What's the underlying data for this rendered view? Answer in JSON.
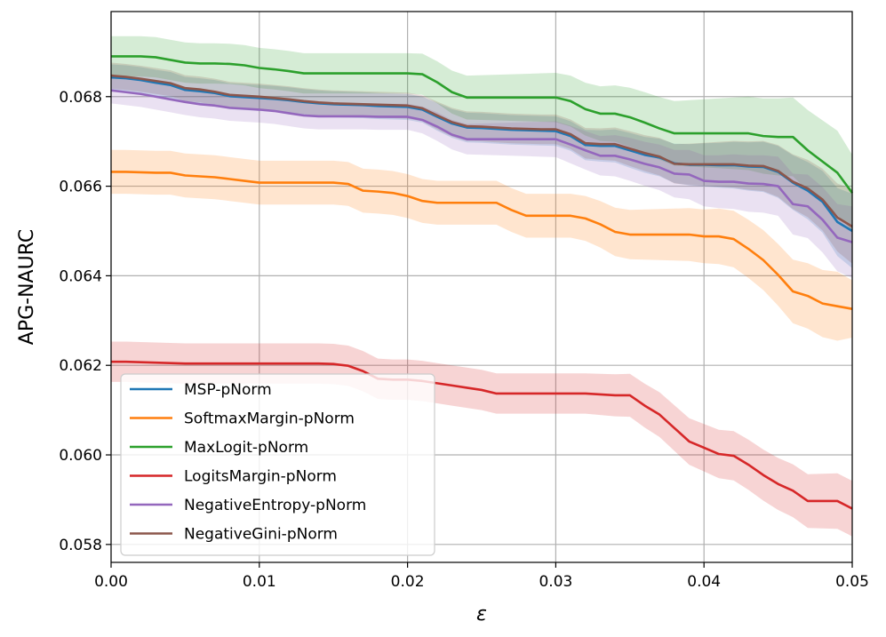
{
  "chart_data": {
    "type": "line",
    "title": "",
    "xlabel": "ε",
    "ylabel": "APG-NAURC",
    "xlim": [
      0.0,
      0.05
    ],
    "ylim": [
      0.0576,
      0.0699
    ],
    "xticks": [
      0.0,
      0.01,
      0.02,
      0.03,
      0.04,
      0.05
    ],
    "xtick_labels": [
      "0.00",
      "0.01",
      "0.02",
      "0.03",
      "0.04",
      "0.05"
    ],
    "yticks": [
      0.058,
      0.06,
      0.062,
      0.064,
      0.066,
      0.068
    ],
    "ytick_labels": [
      "0.058",
      "0.060",
      "0.062",
      "0.064",
      "0.066",
      "0.068"
    ],
    "grid": true,
    "legend_position": "lower-left",
    "x": [
      0.0,
      0.001,
      0.002,
      0.003,
      0.004,
      0.005,
      0.006,
      0.007,
      0.008,
      0.009,
      0.01,
      0.011,
      0.012,
      0.013,
      0.014,
      0.015,
      0.016,
      0.017,
      0.018,
      0.019,
      0.02,
      0.021,
      0.022,
      0.023,
      0.024,
      0.025,
      0.026,
      0.027,
      0.028,
      0.029,
      0.03,
      0.031,
      0.032,
      0.033,
      0.034,
      0.035,
      0.036,
      0.037,
      0.038,
      0.039,
      0.04,
      0.041,
      0.042,
      0.043,
      0.044,
      0.045,
      0.046,
      0.047,
      0.048,
      0.049,
      0.05
    ],
    "series": [
      {
        "name": "MSP-pNorm",
        "color": "#1f77b4",
        "values": [
          0.06843,
          0.06841,
          0.06837,
          0.06831,
          0.06826,
          0.06815,
          0.06812,
          0.06808,
          0.06801,
          0.06799,
          0.06797,
          0.06795,
          0.06792,
          0.06788,
          0.06785,
          0.06783,
          0.06782,
          0.06781,
          0.06779,
          0.06778,
          0.06777,
          0.06771,
          0.06755,
          0.0674,
          0.06731,
          0.0673,
          0.06728,
          0.06726,
          0.06725,
          0.06724,
          0.06723,
          0.06712,
          0.06692,
          0.0669,
          0.0669,
          0.0668,
          0.0667,
          0.06664,
          0.06651,
          0.06648,
          0.06648,
          0.06647,
          0.06647,
          0.06644,
          0.06643,
          0.06632,
          0.06608,
          0.0659,
          0.06565,
          0.0652,
          0.065
        ],
        "lower": [
          0.06814,
          0.06812,
          0.06808,
          0.06802,
          0.06797,
          0.06786,
          0.06783,
          0.06779,
          0.06772,
          0.0677,
          0.06768,
          0.06766,
          0.06763,
          0.06759,
          0.06756,
          0.06754,
          0.06753,
          0.06752,
          0.0675,
          0.06749,
          0.06748,
          0.06742,
          0.06724,
          0.06708,
          0.06698,
          0.06697,
          0.06695,
          0.06693,
          0.06692,
          0.06691,
          0.0669,
          0.06679,
          0.06658,
          0.06655,
          0.06653,
          0.06641,
          0.0663,
          0.06622,
          0.06607,
          0.06602,
          0.066,
          0.06597,
          0.06595,
          0.0659,
          0.06587,
          0.06574,
          0.06547,
          0.06526,
          0.06496,
          0.06444,
          0.06417
        ],
        "upper": [
          0.06872,
          0.0687,
          0.06866,
          0.0686,
          0.06855,
          0.06844,
          0.06841,
          0.06837,
          0.0683,
          0.06828,
          0.06826,
          0.06824,
          0.06821,
          0.06817,
          0.06814,
          0.06812,
          0.06811,
          0.0681,
          0.06808,
          0.06807,
          0.06806,
          0.068,
          0.06786,
          0.06772,
          0.06764,
          0.06763,
          0.06761,
          0.06759,
          0.06758,
          0.06757,
          0.06756,
          0.06745,
          0.06726,
          0.06725,
          0.06727,
          0.06719,
          0.0671,
          0.06706,
          0.06695,
          0.06694,
          0.06696,
          0.06697,
          0.06699,
          0.06698,
          0.06699,
          0.0669,
          0.06669,
          0.06654,
          0.06634,
          0.06596,
          0.06583
        ]
      },
      {
        "name": "SoftmaxMargin-pNorm",
        "color": "#ff7f0e",
        "values": [
          0.06632,
          0.06632,
          0.06631,
          0.0663,
          0.0663,
          0.06624,
          0.06622,
          0.0662,
          0.06616,
          0.06612,
          0.06608,
          0.06608,
          0.06608,
          0.06608,
          0.06608,
          0.06608,
          0.06605,
          0.0659,
          0.06588,
          0.06585,
          0.06578,
          0.06567,
          0.06563,
          0.06563,
          0.06563,
          0.06563,
          0.06563,
          0.06547,
          0.06534,
          0.06534,
          0.06534,
          0.06534,
          0.06528,
          0.06515,
          0.06498,
          0.06492,
          0.06492,
          0.06492,
          0.06492,
          0.06492,
          0.06488,
          0.06488,
          0.06482,
          0.0646,
          0.06435,
          0.06402,
          0.06365,
          0.06355,
          0.06338,
          0.06332,
          0.06326
        ],
        "lower": [
          0.06583,
          0.06583,
          0.06582,
          0.06581,
          0.06581,
          0.06575,
          0.06573,
          0.06571,
          0.06567,
          0.06563,
          0.06559,
          0.06559,
          0.06559,
          0.06559,
          0.06559,
          0.06559,
          0.06556,
          0.06541,
          0.06539,
          0.06536,
          0.06529,
          0.06518,
          0.06514,
          0.06514,
          0.06514,
          0.06514,
          0.06514,
          0.06498,
          0.06485,
          0.06485,
          0.06485,
          0.06485,
          0.06478,
          0.06463,
          0.06444,
          0.06437,
          0.06436,
          0.06435,
          0.06434,
          0.06433,
          0.06428,
          0.06426,
          0.06419,
          0.06395,
          0.06368,
          0.06333,
          0.06294,
          0.06282,
          0.06263,
          0.06255,
          0.06262
        ],
        "upper": [
          0.06681,
          0.06681,
          0.0668,
          0.06679,
          0.06679,
          0.06673,
          0.06671,
          0.06669,
          0.06665,
          0.06661,
          0.06657,
          0.06657,
          0.06657,
          0.06657,
          0.06657,
          0.06657,
          0.06654,
          0.06639,
          0.06637,
          0.06634,
          0.06627,
          0.06616,
          0.06612,
          0.06612,
          0.06612,
          0.06612,
          0.06612,
          0.06596,
          0.06583,
          0.06583,
          0.06583,
          0.06583,
          0.06578,
          0.06567,
          0.06552,
          0.06547,
          0.06548,
          0.06549,
          0.0655,
          0.06551,
          0.06548,
          0.0655,
          0.06545,
          0.06525,
          0.06502,
          0.06471,
          0.06436,
          0.06428,
          0.06413,
          0.06409,
          0.0639
        ]
      },
      {
        "name": "MaxLogit-pNorm",
        "color": "#2ca02c",
        "values": [
          0.0689,
          0.0689,
          0.0689,
          0.06888,
          0.06882,
          0.06876,
          0.06874,
          0.06874,
          0.06873,
          0.0687,
          0.06864,
          0.06861,
          0.06857,
          0.06852,
          0.06852,
          0.06852,
          0.06852,
          0.06852,
          0.06852,
          0.06852,
          0.06852,
          0.0685,
          0.06832,
          0.0681,
          0.06798,
          0.06798,
          0.06798,
          0.06798,
          0.06798,
          0.06798,
          0.06798,
          0.0679,
          0.06772,
          0.06762,
          0.06762,
          0.06754,
          0.06742,
          0.06729,
          0.06718,
          0.06718,
          0.06718,
          0.06718,
          0.06718,
          0.06718,
          0.06712,
          0.0671,
          0.0671,
          0.0668,
          0.06655,
          0.0663,
          0.06585
        ],
        "lower": [
          0.06845,
          0.06845,
          0.06845,
          0.06843,
          0.06837,
          0.06831,
          0.06829,
          0.06829,
          0.06828,
          0.06825,
          0.06819,
          0.06816,
          0.06812,
          0.06807,
          0.06807,
          0.06807,
          0.06807,
          0.06807,
          0.06807,
          0.06807,
          0.06807,
          0.06804,
          0.06785,
          0.06762,
          0.06749,
          0.06748,
          0.06747,
          0.06746,
          0.06745,
          0.06744,
          0.06743,
          0.06733,
          0.06713,
          0.06701,
          0.06699,
          0.06688,
          0.06674,
          0.06659,
          0.06646,
          0.06644,
          0.06642,
          0.0664,
          0.06638,
          0.06636,
          0.06628,
          0.06624,
          0.06622,
          0.0659,
          0.06563,
          0.06536,
          0.065
        ],
        "upper": [
          0.06935,
          0.06935,
          0.06935,
          0.06933,
          0.06927,
          0.06921,
          0.06919,
          0.06919,
          0.06918,
          0.06915,
          0.06909,
          0.06906,
          0.06902,
          0.06897,
          0.06897,
          0.06897,
          0.06897,
          0.06897,
          0.06897,
          0.06897,
          0.06897,
          0.06896,
          0.06879,
          0.06858,
          0.06847,
          0.06848,
          0.06849,
          0.0685,
          0.06851,
          0.06852,
          0.06853,
          0.06847,
          0.06831,
          0.06823,
          0.06825,
          0.0682,
          0.0681,
          0.06799,
          0.0679,
          0.06792,
          0.06794,
          0.06796,
          0.06798,
          0.068,
          0.06796,
          0.06796,
          0.06798,
          0.0677,
          0.06747,
          0.06724,
          0.0667
        ]
      },
      {
        "name": "LogitsMargin-pNorm",
        "color": "#d62728",
        "values": [
          0.06208,
          0.06208,
          0.06207,
          0.06206,
          0.06205,
          0.06204,
          0.06204,
          0.06204,
          0.06204,
          0.06204,
          0.06204,
          0.06204,
          0.06204,
          0.06204,
          0.06204,
          0.06203,
          0.06199,
          0.06187,
          0.0617,
          0.06168,
          0.06168,
          0.06165,
          0.0616,
          0.06155,
          0.0615,
          0.06145,
          0.06137,
          0.06137,
          0.06137,
          0.06137,
          0.06137,
          0.06137,
          0.06137,
          0.06135,
          0.06133,
          0.06133,
          0.0611,
          0.0609,
          0.0606,
          0.0603,
          0.06016,
          0.06002,
          0.05998,
          0.05978,
          0.05955,
          0.05935,
          0.0592,
          0.05897,
          0.05897,
          0.05897,
          0.0588
        ],
        "lower": [
          0.06163,
          0.06163,
          0.06162,
          0.06161,
          0.0616,
          0.06159,
          0.06159,
          0.06159,
          0.06159,
          0.06159,
          0.06159,
          0.06159,
          0.06159,
          0.06159,
          0.06159,
          0.06158,
          0.06154,
          0.06142,
          0.06125,
          0.06123,
          0.06123,
          0.0612,
          0.06115,
          0.0611,
          0.06105,
          0.061,
          0.06092,
          0.06092,
          0.06092,
          0.06092,
          0.06092,
          0.06092,
          0.06092,
          0.06089,
          0.06086,
          0.06085,
          0.06061,
          0.0604,
          0.06009,
          0.05978,
          0.05963,
          0.05948,
          0.05943,
          0.05922,
          0.05898,
          0.05877,
          0.05861,
          0.05837,
          0.05836,
          0.05835,
          0.05818
        ],
        "upper": [
          0.06253,
          0.06253,
          0.06252,
          0.06251,
          0.0625,
          0.06249,
          0.06249,
          0.06249,
          0.06249,
          0.06249,
          0.06249,
          0.06249,
          0.06249,
          0.06249,
          0.06249,
          0.06248,
          0.06244,
          0.06232,
          0.06215,
          0.06213,
          0.06213,
          0.0621,
          0.06205,
          0.062,
          0.06195,
          0.0619,
          0.06182,
          0.06182,
          0.06182,
          0.06182,
          0.06182,
          0.06182,
          0.06182,
          0.06181,
          0.0618,
          0.06181,
          0.06159,
          0.0614,
          0.06111,
          0.06082,
          0.06069,
          0.06056,
          0.06053,
          0.06034,
          0.06012,
          0.05993,
          0.05979,
          0.05957,
          0.05958,
          0.05959,
          0.05942
        ]
      },
      {
        "name": "NegativeEntropy-pNorm",
        "color": "#9467bd",
        "values": [
          0.06814,
          0.0681,
          0.06806,
          0.068,
          0.06794,
          0.06788,
          0.06783,
          0.0678,
          0.06775,
          0.06773,
          0.06771,
          0.06768,
          0.06763,
          0.06758,
          0.06756,
          0.06756,
          0.06756,
          0.06756,
          0.06755,
          0.06755,
          0.06755,
          0.06748,
          0.06733,
          0.06715,
          0.06705,
          0.06705,
          0.06705,
          0.06705,
          0.06705,
          0.06705,
          0.06705,
          0.06693,
          0.0668,
          0.06668,
          0.06668,
          0.0666,
          0.0665,
          0.06642,
          0.06628,
          0.06626,
          0.06612,
          0.0661,
          0.0661,
          0.06606,
          0.06605,
          0.066,
          0.0656,
          0.06555,
          0.06525,
          0.06485,
          0.06475
        ],
        "lower": [
          0.06785,
          0.06781,
          0.06777,
          0.06771,
          0.06765,
          0.06759,
          0.06754,
          0.06751,
          0.06746,
          0.06744,
          0.06742,
          0.06739,
          0.06734,
          0.06729,
          0.06727,
          0.06727,
          0.06727,
          0.06727,
          0.06726,
          0.06726,
          0.06726,
          0.06718,
          0.06701,
          0.06682,
          0.06671,
          0.0667,
          0.06669,
          0.06668,
          0.06667,
          0.06666,
          0.06665,
          0.06651,
          0.06637,
          0.06624,
          0.06622,
          0.06612,
          0.06601,
          0.06591,
          0.06575,
          0.06571,
          0.06555,
          0.06551,
          0.06549,
          0.06543,
          0.06541,
          0.06534,
          0.06492,
          0.06484,
          0.06452,
          0.0641,
          0.06395
        ],
        "upper": [
          0.06843,
          0.06839,
          0.06835,
          0.06829,
          0.06823,
          0.06817,
          0.06812,
          0.06809,
          0.06804,
          0.06802,
          0.068,
          0.06797,
          0.06792,
          0.06787,
          0.06785,
          0.06785,
          0.06785,
          0.06785,
          0.06784,
          0.06784,
          0.06784,
          0.06778,
          0.06765,
          0.06748,
          0.06739,
          0.0674,
          0.06741,
          0.06742,
          0.06743,
          0.06744,
          0.06745,
          0.06735,
          0.06723,
          0.06712,
          0.06714,
          0.06708,
          0.06699,
          0.06693,
          0.06681,
          0.06681,
          0.06669,
          0.06669,
          0.06671,
          0.06669,
          0.06669,
          0.06666,
          0.06628,
          0.06626,
          0.06598,
          0.0656,
          0.06555
        ]
      },
      {
        "name": "NegativeGini-pNorm",
        "color": "#8c564b",
        "values": [
          0.06847,
          0.06844,
          0.0684,
          0.06835,
          0.0683,
          0.06819,
          0.06816,
          0.06811,
          0.06804,
          0.06802,
          0.068,
          0.06797,
          0.06794,
          0.0679,
          0.06787,
          0.06785,
          0.06784,
          0.06783,
          0.06782,
          0.06781,
          0.0678,
          0.06774,
          0.06758,
          0.06743,
          0.06734,
          0.06733,
          0.06731,
          0.06729,
          0.06728,
          0.06727,
          0.06727,
          0.06716,
          0.06696,
          0.06694,
          0.06694,
          0.06684,
          0.06674,
          0.06666,
          0.0665,
          0.06649,
          0.06649,
          0.06649,
          0.06649,
          0.06646,
          0.06645,
          0.06634,
          0.0661,
          0.06595,
          0.0657,
          0.0653,
          0.0651
        ],
        "lower": [
          0.06818,
          0.06815,
          0.06811,
          0.06806,
          0.06801,
          0.0679,
          0.06787,
          0.06782,
          0.06775,
          0.06773,
          0.06771,
          0.06768,
          0.06765,
          0.06761,
          0.06758,
          0.06756,
          0.06755,
          0.06754,
          0.06753,
          0.06752,
          0.06751,
          0.06745,
          0.06727,
          0.06711,
          0.06701,
          0.067,
          0.06698,
          0.06696,
          0.06695,
          0.06694,
          0.06694,
          0.06683,
          0.06662,
          0.06659,
          0.06657,
          0.06645,
          0.06634,
          0.06624,
          0.06606,
          0.06603,
          0.06601,
          0.06599,
          0.06597,
          0.06592,
          0.06589,
          0.06576,
          0.06549,
          0.06531,
          0.06501,
          0.06454,
          0.06427
        ],
        "upper": [
          0.06876,
          0.06873,
          0.06869,
          0.06864,
          0.06859,
          0.06848,
          0.06845,
          0.0684,
          0.06833,
          0.06831,
          0.06829,
          0.06826,
          0.06823,
          0.06819,
          0.06816,
          0.06814,
          0.06813,
          0.06812,
          0.06811,
          0.0681,
          0.06809,
          0.06803,
          0.06789,
          0.06775,
          0.06767,
          0.06766,
          0.06764,
          0.06762,
          0.06761,
          0.0676,
          0.0676,
          0.06749,
          0.0673,
          0.06729,
          0.06731,
          0.06723,
          0.06714,
          0.06708,
          0.06694,
          0.06695,
          0.06697,
          0.06699,
          0.06701,
          0.067,
          0.06701,
          0.06692,
          0.06671,
          0.06659,
          0.06639,
          0.06606,
          0.06593
        ]
      }
    ]
  }
}
